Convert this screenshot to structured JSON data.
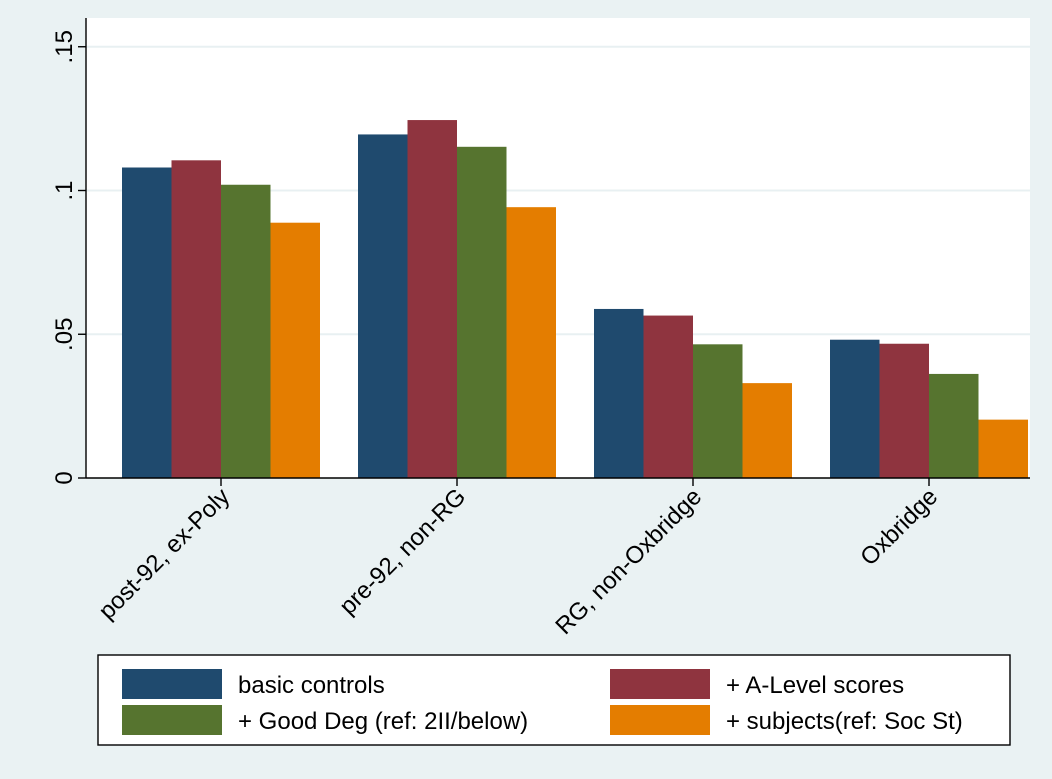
{
  "chart_data": {
    "type": "bar",
    "categories": [
      "post-92, ex-Poly",
      "pre-92, non-RG",
      "RG, non-Oxbridge",
      "Oxbridge"
    ],
    "series": [
      {
        "name": "basic controls",
        "color": "#1f4a6e",
        "values": [
          0.108,
          0.1195,
          0.0588,
          0.0481
        ]
      },
      {
        "name": "+ A-Level scores",
        "color": "#8f343f",
        "values": [
          0.1105,
          0.1245,
          0.0565,
          0.0467
        ]
      },
      {
        "name": "+ Good Deg (ref: 2II/below)",
        "color": "#56742f",
        "values": [
          0.102,
          0.1152,
          0.0465,
          0.0362
        ]
      },
      {
        "name": "+ subjects(ref: Soc St)",
        "color": "#e47d00",
        "values": [
          0.0888,
          0.0942,
          0.033,
          0.0203
        ]
      }
    ],
    "yticks": [
      0,
      0.05,
      0.1,
      0.15
    ],
    "ytick_labels": [
      "0",
      ".05",
      ".1",
      ".15"
    ],
    "ylim": [
      0,
      0.16
    ],
    "grid": true,
    "legend_position": "bottom",
    "background_color": "#eaf2f3",
    "plot_background_color": "#ffffff",
    "gridline_color": "#e8f0f2"
  }
}
